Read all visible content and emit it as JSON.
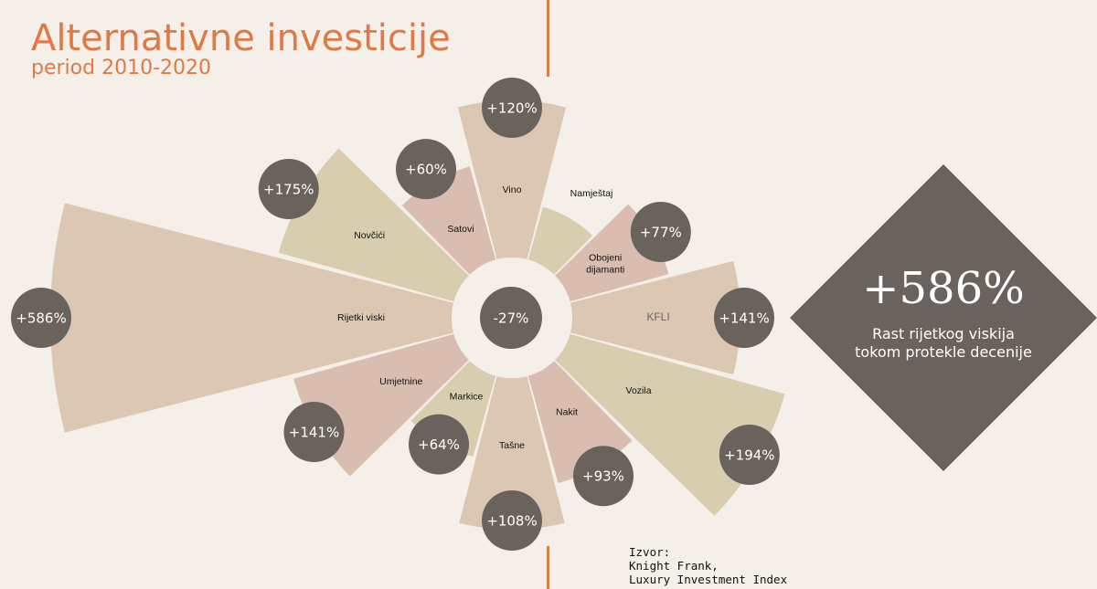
{
  "header": {
    "title": "Alternativne investicije",
    "subtitle": "period 2010-2020"
  },
  "colors": {
    "background": "#f4efe9",
    "accent": "#df7a45",
    "bubble": "#6a635d",
    "beige": "#d9cdb0",
    "rose": "#d8bdb0",
    "tan": "#dcc7b3"
  },
  "chart_data": {
    "type": "polar-area",
    "center_label": "-27%",
    "categories": [
      "Vino",
      "Namještaj",
      "Obojeni dijamanti",
      "KFLI",
      "Vozila",
      "Nakit",
      "Tašne",
      "Markice",
      "Umjetnine",
      "Rijetki viski",
      "Novčići",
      "Satovi"
    ],
    "values": [
      120,
      -27,
      77,
      141,
      194,
      93,
      108,
      64,
      141,
      586,
      175,
      60
    ],
    "value_labels": [
      "+120%",
      "",
      "+77%",
      "+141%",
      "+194%",
      "+93%",
      "+108%",
      "+64%",
      "+141%",
      "+586%",
      "+175%",
      "+60%"
    ],
    "value_unit": "%"
  },
  "highlight": {
    "value": "+586%",
    "caption_line1": "Rast rijetkog viskija",
    "caption_line2": "tokom protekle decenije"
  },
  "source": {
    "line1": "Izvor:",
    "line2": "Knight Frank,",
    "line3": "Luxury Investment Index"
  }
}
